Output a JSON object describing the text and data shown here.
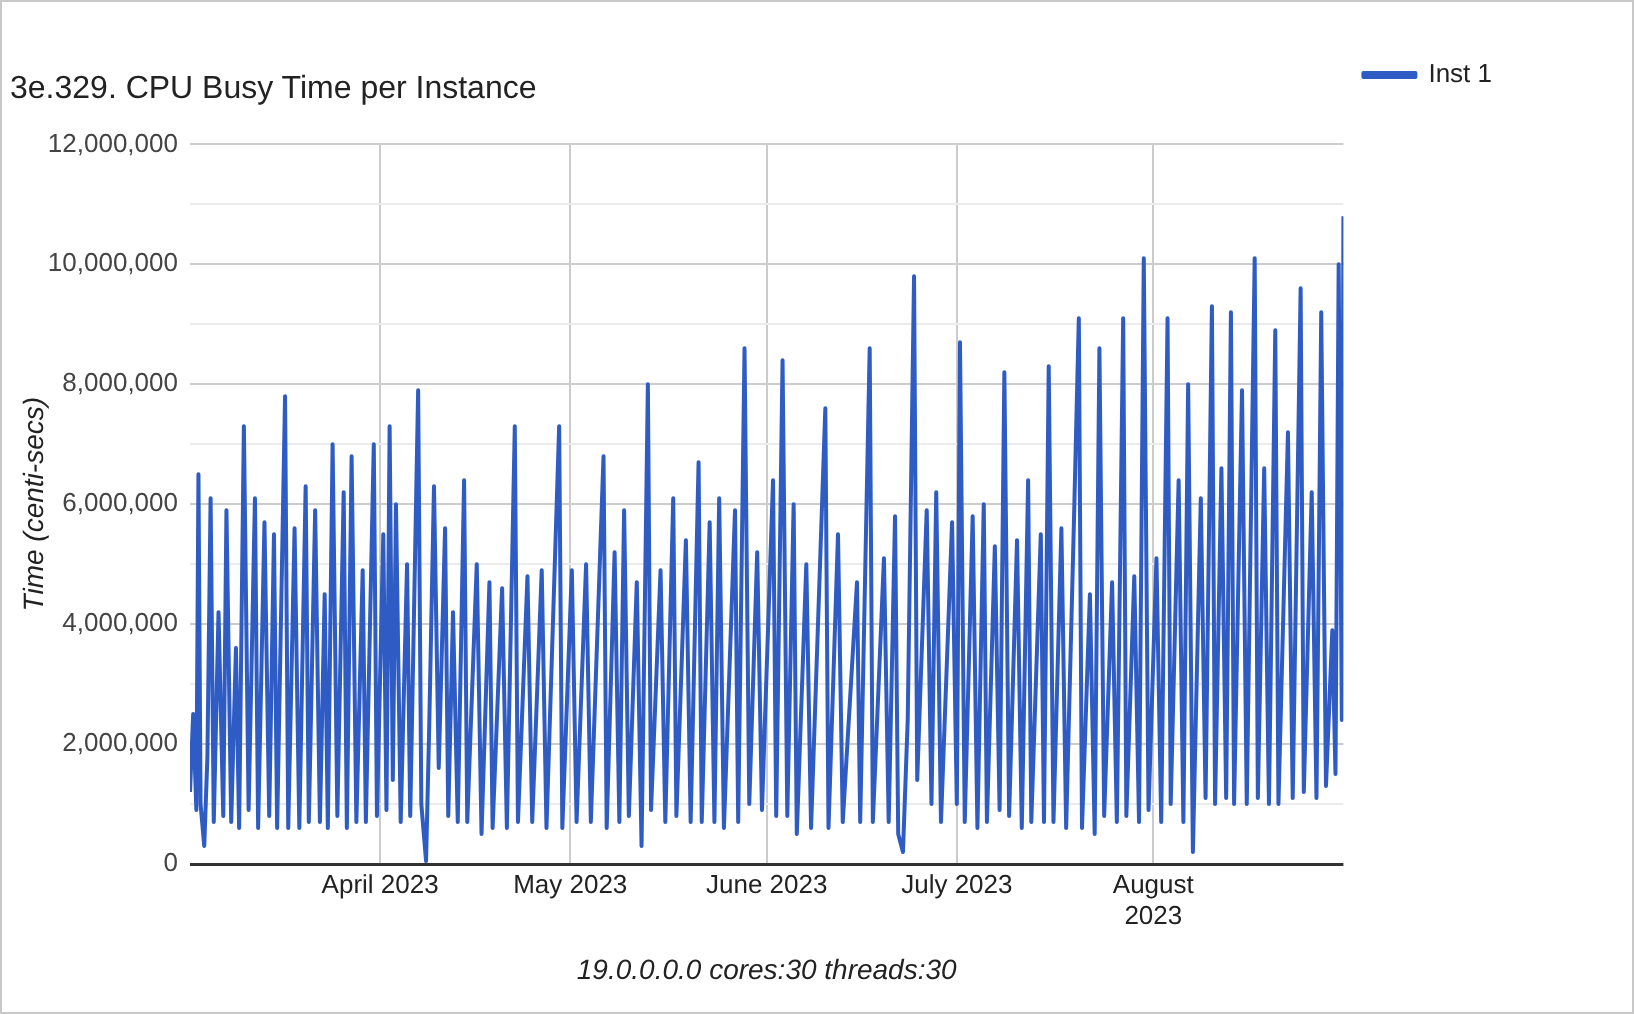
{
  "chart_data": {
    "type": "line",
    "title": "3e.329. CPU Busy Time per Instance",
    "xlabel": "19.0.0.0.0 cores:30 threads:30",
    "ylabel": "Time (centi-secs)",
    "x": [
      "2023-03-02T00:00",
      "2023-03-02T12:00",
      "2023-03-03T00:00",
      "2023-03-03T08:00",
      "2023-03-03T16:00",
      "2023-03-04T06:00",
      "2023-03-04T18:00",
      "2023-03-05T06:00",
      "2023-03-05T18:00",
      "2023-03-06T12:00",
      "2023-03-07T06:00",
      "2023-03-07T18:00",
      "2023-03-08T12:00",
      "2023-03-09T06:00",
      "2023-03-09T18:00",
      "2023-03-10T12:00",
      "2023-03-11T06:00",
      "2023-03-12T06:00",
      "2023-03-12T18:00",
      "2023-03-13T18:00",
      "2023-03-14T12:00",
      "2023-03-15T06:00",
      "2023-03-15T18:00",
      "2023-03-17T00:00",
      "2023-03-17T12:00",
      "2023-03-18T12:00",
      "2023-03-19T06:00",
      "2023-03-20T06:00",
      "2023-03-20T18:00",
      "2023-03-21T18:00",
      "2023-03-22T12:00",
      "2023-03-23T06:00",
      "2023-03-23T18:00",
      "2023-03-24T12:00",
      "2023-03-25T06:00",
      "2023-03-26T06:00",
      "2023-03-26T18:00",
      "2023-03-27T12:00",
      "2023-03-28T06:00",
      "2023-03-29T06:00",
      "2023-03-29T18:00",
      "2023-03-31T00:00",
      "2023-03-31T12:00",
      "2023-04-01T12:00",
      "2023-04-02T00:00",
      "2023-04-02T12:00",
      "2023-04-03T00:00",
      "2023-04-03T12:00",
      "2023-04-04T06:00",
      "2023-04-05T06:00",
      "2023-04-05T18:00",
      "2023-04-07T00:00",
      "2023-04-07T12:00",
      "2023-04-08T06:00",
      "2023-04-08T18:00",
      "2023-04-09T12:00",
      "2023-04-10T06:00",
      "2023-04-11T06:00",
      "2023-04-11T18:00",
      "2023-04-12T12:00",
      "2023-04-13T06:00",
      "2023-04-14T06:00",
      "2023-04-14T18:00",
      "2023-04-16T06:00",
      "2023-04-17T00:00",
      "2023-04-18T06:00",
      "2023-04-18T18:00",
      "2023-04-20T06:00",
      "2023-04-21T00:00",
      "2023-04-22T06:00",
      "2023-04-22T18:00",
      "2023-04-24T06:00",
      "2023-04-25T00:00",
      "2023-04-26T12:00",
      "2023-04-27T06:00",
      "2023-04-29T06:00",
      "2023-04-29T18:00",
      "2023-05-01T06:00",
      "2023-05-02T00:00",
      "2023-05-03T12:00",
      "2023-05-04T06:00",
      "2023-05-06T06:00",
      "2023-05-06T18:00",
      "2023-05-08T00:00",
      "2023-05-08T18:00",
      "2023-05-09T12:00",
      "2023-05-10T06:00",
      "2023-05-11T12:00",
      "2023-05-12T06:00",
      "2023-05-13T06:00",
      "2023-05-13T18:00",
      "2023-05-15T06:00",
      "2023-05-16T00:00",
      "2023-05-17T06:00",
      "2023-05-17T18:00",
      "2023-05-19T06:00",
      "2023-05-20T00:00",
      "2023-05-21T06:00",
      "2023-05-21T18:00",
      "2023-05-23T00:00",
      "2023-05-23T18:00",
      "2023-05-24T12:00",
      "2023-05-25T06:00",
      "2023-05-27T00:00",
      "2023-05-27T12:00",
      "2023-05-28T12:00",
      "2023-05-29T06:00",
      "2023-05-30T12:00",
      "2023-05-31T06:00",
      "2023-06-02T00:00",
      "2023-06-02T12:00",
      "2023-06-03T12:00",
      "2023-06-04T06:00",
      "2023-06-05T06:00",
      "2023-06-05T18:00",
      "2023-06-07T06:00",
      "2023-06-08T00:00",
      "2023-06-10T06:00",
      "2023-06-10T18:00",
      "2023-06-12T06:00",
      "2023-06-13T00:00",
      "2023-06-15T06:00",
      "2023-06-15T18:00",
      "2023-06-17T06:00",
      "2023-06-17T18:00",
      "2023-06-19T12:00",
      "2023-06-20T06:00",
      "2023-06-21T06:00",
      "2023-06-21T18:00",
      "2023-06-22T12:00",
      "2023-06-23T06:00",
      "2023-06-24T06:00",
      "2023-06-24T18:00",
      "2023-06-26T06:00",
      "2023-06-27T00:00",
      "2023-06-27T18:00",
      "2023-06-28T12:00",
      "2023-06-30T06:00",
      "2023-07-01T00:00",
      "2023-07-01T12:00",
      "2023-07-02T06:00",
      "2023-07-03T12:00",
      "2023-07-04T06:00",
      "2023-07-05T06:00",
      "2023-07-05T18:00",
      "2023-07-07T00:00",
      "2023-07-07T18:00",
      "2023-07-08T12:00",
      "2023-07-09T06:00",
      "2023-07-10T12:00",
      "2023-07-11T06:00",
      "2023-07-12T06:00",
      "2023-07-12T18:00",
      "2023-07-14T06:00",
      "2023-07-14T18:00",
      "2023-07-15T12:00",
      "2023-07-16T06:00",
      "2023-07-17T12:00",
      "2023-07-18T06:00",
      "2023-07-19T12:00",
      "2023-07-20T06:00",
      "2023-07-20T18:00",
      "2023-07-22T00:00",
      "2023-07-22T18:00",
      "2023-07-23T12:00",
      "2023-07-24T06:00",
      "2023-07-25T12:00",
      "2023-07-26T06:00",
      "2023-07-27T06:00",
      "2023-07-27T18:00",
      "2023-07-29T00:00",
      "2023-07-29T18:00",
      "2023-07-30T12:00",
      "2023-07-31T06:00",
      "2023-08-01T12:00",
      "2023-08-02T06:00",
      "2023-08-03T06:00",
      "2023-08-03T18:00",
      "2023-08-05T00:00",
      "2023-08-05T18:00",
      "2023-08-06T12:00",
      "2023-08-07T06:00",
      "2023-08-07T18:00",
      "2023-08-08T12:00",
      "2023-08-09T06:00",
      "2023-08-10T06:00",
      "2023-08-10T18:00",
      "2023-08-11T18:00",
      "2023-08-12T12:00",
      "2023-08-13T06:00",
      "2023-08-13T18:00",
      "2023-08-15T00:00",
      "2023-08-15T18:00",
      "2023-08-17T00:00",
      "2023-08-17T12:00",
      "2023-08-18T12:00",
      "2023-08-19T06:00",
      "2023-08-20T06:00",
      "2023-08-20T18:00",
      "2023-08-22T06:00",
      "2023-08-23T00:00",
      "2023-08-24T06:00",
      "2023-08-24T18:00",
      "2023-08-26T00:00",
      "2023-08-26T18:00",
      "2023-08-27T12:00",
      "2023-08-28T06:00",
      "2023-08-29T06:00",
      "2023-08-29T18:00",
      "2023-08-30T06:00",
      "2023-08-30T18:00",
      "2023-08-31T00:00"
    ],
    "series": [
      {
        "name": "Inst 1",
        "color": "#2e5cc4",
        "values": [
          1200000,
          2500000,
          900000,
          6500000,
          1000000,
          300000,
          1800000,
          6100000,
          700000,
          4200000,
          800000,
          5900000,
          700000,
          3600000,
          600000,
          7300000,
          900000,
          6100000,
          600000,
          5700000,
          800000,
          5500000,
          600000,
          7800000,
          600000,
          5600000,
          600000,
          6300000,
          700000,
          5900000,
          700000,
          4500000,
          600000,
          7000000,
          800000,
          6200000,
          600000,
          6800000,
          700000,
          4900000,
          700000,
          7000000,
          800000,
          5500000,
          900000,
          7300000,
          1400000,
          6000000,
          700000,
          5000000,
          800000,
          7900000,
          1000000,
          50000,
          2300000,
          6300000,
          1600000,
          5600000,
          800000,
          4200000,
          700000,
          6400000,
          700000,
          5000000,
          500000,
          4700000,
          600000,
          4600000,
          600000,
          7300000,
          700000,
          4800000,
          700000,
          4900000,
          600000,
          7300000,
          600000,
          4900000,
          700000,
          5000000,
          700000,
          6800000,
          600000,
          5200000,
          700000,
          5900000,
          800000,
          4700000,
          300000,
          8000000,
          900000,
          4900000,
          700000,
          6100000,
          800000,
          5400000,
          700000,
          6700000,
          700000,
          5700000,
          700000,
          6100000,
          600000,
          5900000,
          700000,
          8600000,
          1000000,
          5200000,
          900000,
          6400000,
          800000,
          8400000,
          800000,
          6000000,
          500000,
          5000000,
          600000,
          7600000,
          600000,
          5500000,
          700000,
          4700000,
          700000,
          8600000,
          700000,
          5100000,
          700000,
          5800000,
          500000,
          200000,
          2400000,
          9800000,
          1400000,
          5900000,
          1000000,
          6200000,
          700000,
          5700000,
          1000000,
          8700000,
          700000,
          5800000,
          600000,
          6000000,
          700000,
          5300000,
          900000,
          8200000,
          800000,
          5400000,
          600000,
          6400000,
          700000,
          5500000,
          700000,
          8300000,
          700000,
          5600000,
          600000,
          5800000,
          9100000,
          600000,
          4500000,
          500000,
          8600000,
          800000,
          4700000,
          700000,
          9100000,
          800000,
          4800000,
          700000,
          10100000,
          900000,
          5100000,
          700000,
          9100000,
          1000000,
          6400000,
          700000,
          8000000,
          200000,
          2600000,
          6100000,
          1100000,
          9300000,
          1000000,
          6600000,
          1100000,
          9200000,
          1000000,
          7900000,
          1000000,
          10100000,
          1100000,
          6600000,
          1000000,
          8900000,
          1000000,
          7200000,
          1100000,
          9600000,
          1200000,
          6200000,
          1100000,
          9200000,
          1300000,
          3900000,
          1500000,
          10000000,
          2400000,
          10800000
        ]
      }
    ],
    "xlim": [
      "2023-03-02",
      "2023-08-31"
    ],
    "xticks": [
      {
        "value": "2023-04-01",
        "label": "April 2023"
      },
      {
        "value": "2023-05-01",
        "label": "May 2023"
      },
      {
        "value": "2023-06-01",
        "label": "June 2023"
      },
      {
        "value": "2023-07-01",
        "label": "July 2023"
      },
      {
        "value": "2023-08-01",
        "label": "August 2023"
      }
    ],
    "ylim": [
      0,
      12000000
    ],
    "yticks": [
      0,
      {
        "value": 1000000,
        "label": null
      },
      {
        "value": 2000000,
        "label": "2,000,000"
      },
      {
        "value": 3000000,
        "label": null
      },
      {
        "value": 4000000,
        "label": "4,000,000"
      },
      {
        "value": 5000000,
        "label": null
      },
      {
        "value": 6000000,
        "label": "6,000,000"
      },
      {
        "value": 7000000,
        "label": null
      },
      {
        "value": 8000000,
        "label": "8,000,000"
      },
      {
        "value": 9000000,
        "label": null
      },
      {
        "value": 10000000,
        "label": "10,000,000"
      },
      {
        "value": 11000000,
        "label": null
      },
      {
        "value": 12000000,
        "label": "12,000,000"
      }
    ],
    "grid": true,
    "legend": "right",
    "marker": "none",
    "line_style": "solid"
  }
}
